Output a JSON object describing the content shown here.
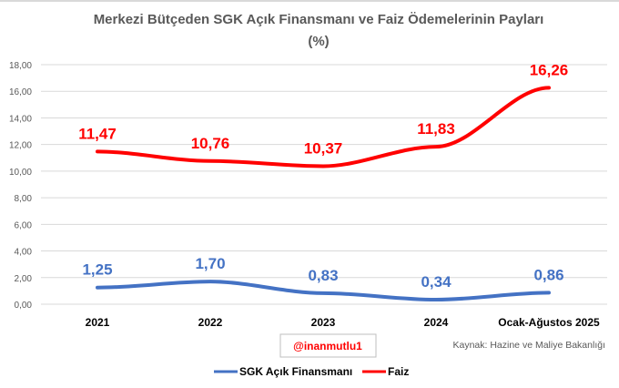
{
  "chart_data": {
    "type": "line",
    "title": "Merkezi Bütçeden SGK Açık Finansmanı ve Faiz Ödemelerinin Payları",
    "subtitle": "(%)",
    "categories": [
      "2021",
      "2022",
      "2023",
      "2024",
      "Ocak-Ağustos 2025"
    ],
    "ylim": [
      0,
      18
    ],
    "yticks": [
      "0,00",
      "2,00",
      "4,00",
      "6,00",
      "8,00",
      "10,00",
      "12,00",
      "14,00",
      "16,00",
      "18,00"
    ],
    "grid": true,
    "legend_position": "bottom",
    "series": [
      {
        "name": "SGK Açık Finansmanı",
        "color": "#4472c4",
        "values": [
          1.25,
          1.7,
          0.83,
          0.34,
          0.86
        ],
        "labels": [
          "1,25",
          "1,70",
          "0,83",
          "0,34",
          "0,86"
        ]
      },
      {
        "name": "Faiz",
        "color": "#ff0000",
        "values": [
          11.47,
          10.76,
          10.37,
          11.83,
          16.26
        ],
        "labels": [
          "11,47",
          "10,76",
          "10,37",
          "11,83",
          "16,26"
        ]
      }
    ]
  },
  "watermark": "@inanmutlu1",
  "source": "Kaynak: Hazine ve Maliye Bakanlığı"
}
